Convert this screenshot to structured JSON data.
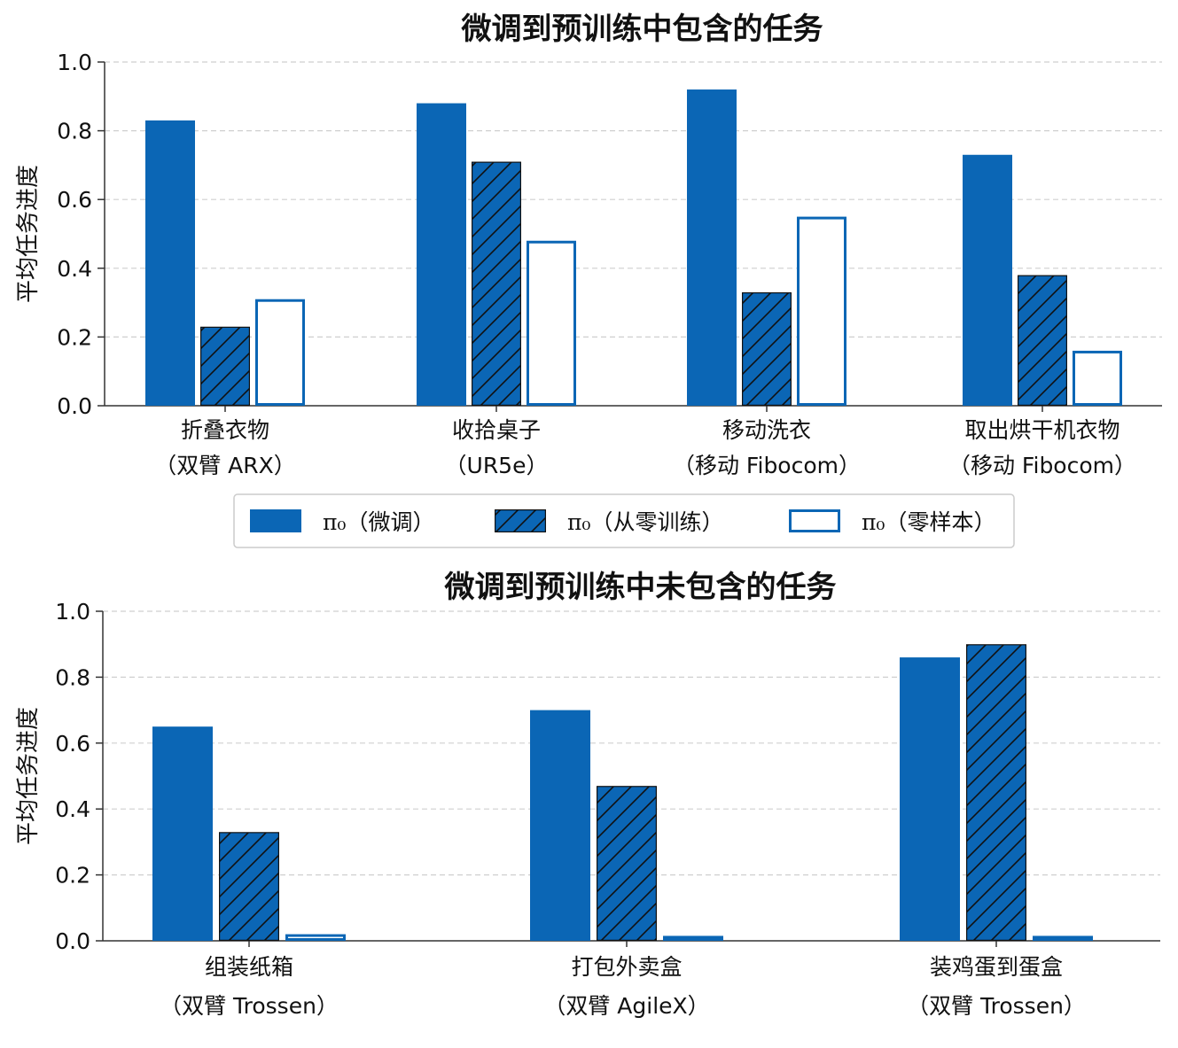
{
  "colors": {
    "accent": "#0b66b5",
    "hatch": "#111111",
    "grid": "#cfcfcf",
    "axis": "#333333"
  },
  "legend": {
    "items": [
      {
        "label": "π₀（微调）",
        "style": "solid"
      },
      {
        "label": "π₀（从零训练）",
        "style": "hatch"
      },
      {
        "label": "π₀（零样本）",
        "style": "outline"
      }
    ]
  },
  "chart_data": [
    {
      "type": "bar",
      "title": "微调到预训练中包含的任务",
      "ylabel": "平均任务进度",
      "ylim": [
        0,
        1.0
      ],
      "yticks": [
        "0.0",
        "0.2",
        "0.4",
        "0.6",
        "0.8",
        "1.0"
      ],
      "grid": true,
      "categories": [
        [
          "折叠衣物",
          "（双臂 ARX）"
        ],
        [
          "收拾桌子",
          "（UR5e）"
        ],
        [
          "移动洗衣",
          "（移动 Fibocom）"
        ],
        [
          "取出烘干机衣物",
          "（移动 Fibocom）"
        ]
      ],
      "series": [
        {
          "name": "π₀（微调）",
          "values": [
            0.83,
            0.88,
            0.92,
            0.73
          ]
        },
        {
          "name": "π₀（从零训练）",
          "values": [
            0.23,
            0.71,
            0.33,
            0.38
          ]
        },
        {
          "name": "π₀（零样本）",
          "values": [
            0.31,
            0.48,
            0.55,
            0.16
          ]
        }
      ]
    },
    {
      "type": "bar",
      "title": "微调到预训练中未包含的任务",
      "ylabel": "平均任务进度",
      "ylim": [
        0,
        1.0
      ],
      "yticks": [
        "0.0",
        "0.2",
        "0.4",
        "0.6",
        "0.8",
        "1.0"
      ],
      "grid": true,
      "categories": [
        [
          "组装纸箱",
          "（双臂 Trossen）"
        ],
        [
          "打包外卖盒",
          "（双臂 AgileX）"
        ],
        [
          "装鸡蛋到蛋盒",
          "（双臂 Trossen）"
        ]
      ],
      "series": [
        {
          "name": "π₀（微调）",
          "values": [
            0.65,
            0.7,
            0.86
          ]
        },
        {
          "name": "π₀（从零训练）",
          "values": [
            0.33,
            0.47,
            0.9
          ]
        },
        {
          "name": "π₀（零样本）",
          "values": [
            0.02,
            0.015,
            0.015
          ]
        }
      ]
    }
  ]
}
